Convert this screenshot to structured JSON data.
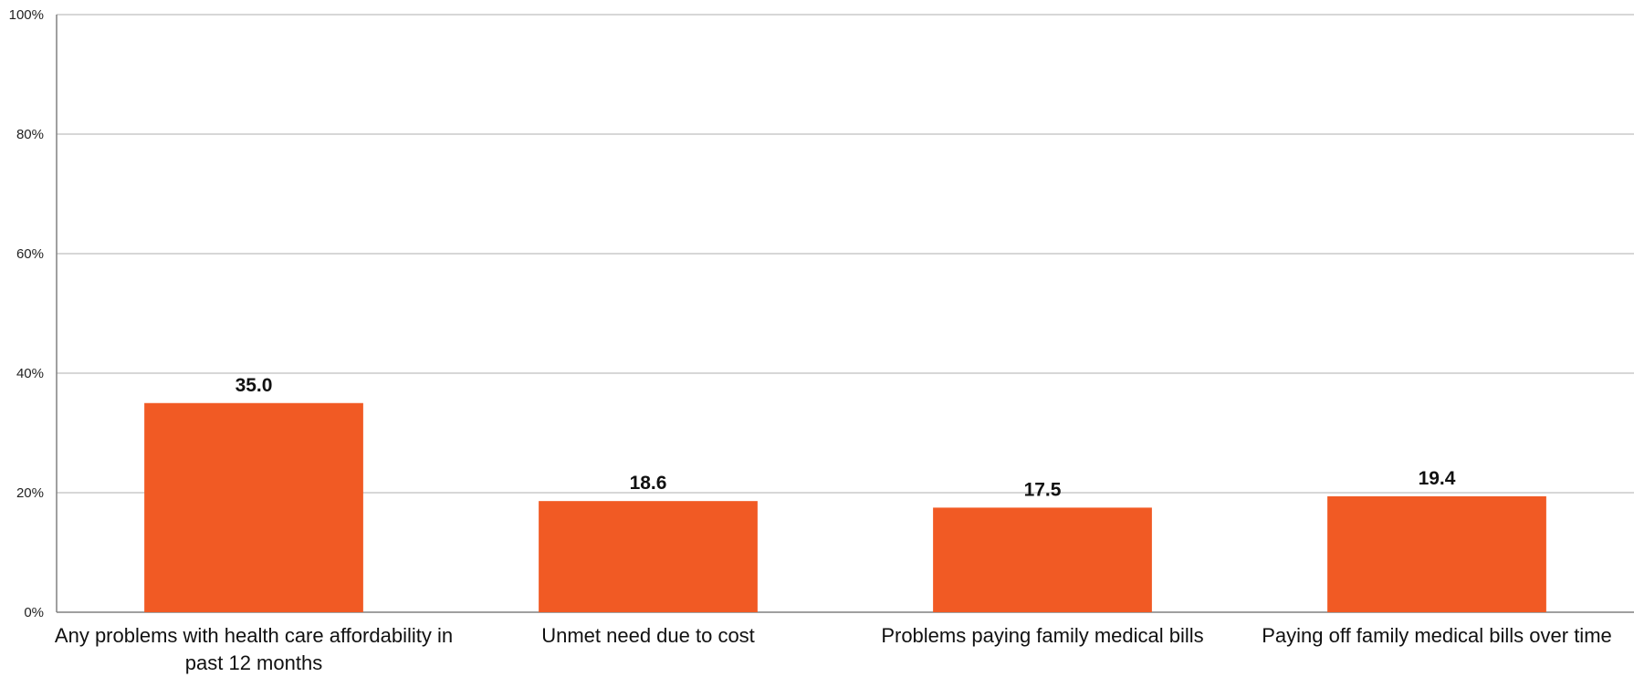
{
  "chart_data": {
    "type": "bar",
    "categories": [
      [
        "Any problems with health care affordability in",
        "past 12 months"
      ],
      [
        "Unmet need due to cost"
      ],
      [
        "Problems paying family medical bills"
      ],
      [
        "Paying off family medical bills over time"
      ]
    ],
    "values": [
      35.0,
      18.6,
      17.5,
      19.4
    ],
    "value_labels": [
      "35.0",
      "18.6",
      "17.5",
      "19.4"
    ],
    "yticks": [
      "0%",
      "20%",
      "40%",
      "60%",
      "80%",
      "100%"
    ],
    "ylim": [
      0,
      100
    ],
    "grid": true,
    "bar_color": "#F15A24",
    "grid_color": "#BFBFBF",
    "axis_color": "#808080"
  }
}
